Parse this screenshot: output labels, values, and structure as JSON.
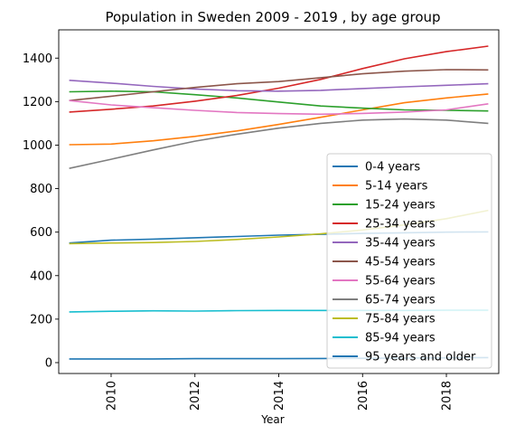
{
  "chart_data": {
    "type": "line",
    "title": "Population in Sweden 2009 - 2019 , by age group",
    "xlabel": "Year",
    "ylabel": "",
    "xlim": [
      2008.75,
      2019.25
    ],
    "ylim": [
      -50,
      1530
    ],
    "x": [
      2009,
      2010,
      2011,
      2012,
      2013,
      2014,
      2015,
      2016,
      2017,
      2018,
      2019
    ],
    "x_ticks": [
      2010,
      2012,
      2014,
      2016,
      2018
    ],
    "y_ticks": [
      0,
      200,
      400,
      600,
      800,
      1000,
      1200,
      1400
    ],
    "legend_position": "lower-right",
    "series": [
      {
        "name": "0-4 years",
        "color": "#1f77b4",
        "values": [
          550,
          563,
          568,
          574,
          580,
          586,
          590,
          594,
          597,
          600,
          601
        ]
      },
      {
        "name": "5-14 years",
        "color": "#ff7f0e",
        "values": [
          1002,
          1005,
          1020,
          1040,
          1065,
          1095,
          1128,
          1162,
          1195,
          1217,
          1235
        ]
      },
      {
        "name": "15-24 years",
        "color": "#2ca02c",
        "values": [
          1245,
          1248,
          1245,
          1232,
          1217,
          1198,
          1180,
          1170,
          1162,
          1160,
          1157
        ]
      },
      {
        "name": "25-34 years",
        "color": "#d62728",
        "values": [
          1152,
          1165,
          1180,
          1202,
          1228,
          1262,
          1302,
          1352,
          1397,
          1430,
          1455
        ]
      },
      {
        "name": "35-44 years",
        "color": "#9467bd",
        "values": [
          1298,
          1285,
          1270,
          1258,
          1250,
          1248,
          1252,
          1260,
          1268,
          1275,
          1282
        ]
      },
      {
        "name": "45-54 years",
        "color": "#8c564b",
        "values": [
          1205,
          1225,
          1245,
          1265,
          1282,
          1292,
          1310,
          1328,
          1340,
          1347,
          1346
        ]
      },
      {
        "name": "55-64 years",
        "color": "#e377c2",
        "values": [
          1205,
          1185,
          1172,
          1160,
          1150,
          1145,
          1142,
          1146,
          1152,
          1162,
          1190
        ]
      },
      {
        "name": "65-74 years",
        "color": "#7f7f7f",
        "values": [
          893,
          935,
          978,
          1018,
          1050,
          1078,
          1100,
          1115,
          1120,
          1115,
          1100
        ]
      },
      {
        "name": "75-84 years",
        "color": "#bcbd22",
        "values": [
          547,
          550,
          552,
          557,
          566,
          578,
          592,
          610,
          633,
          662,
          700
        ]
      },
      {
        "name": "85-94 years",
        "color": "#17becf",
        "values": [
          233,
          236,
          238,
          237,
          239,
          240,
          240,
          240,
          240,
          241,
          241
        ]
      },
      {
        "name": "95 years and older",
        "color": "#1f77b4",
        "values": [
          17,
          17,
          17,
          18,
          18,
          18,
          19,
          20,
          21,
          22,
          23
        ]
      }
    ]
  }
}
